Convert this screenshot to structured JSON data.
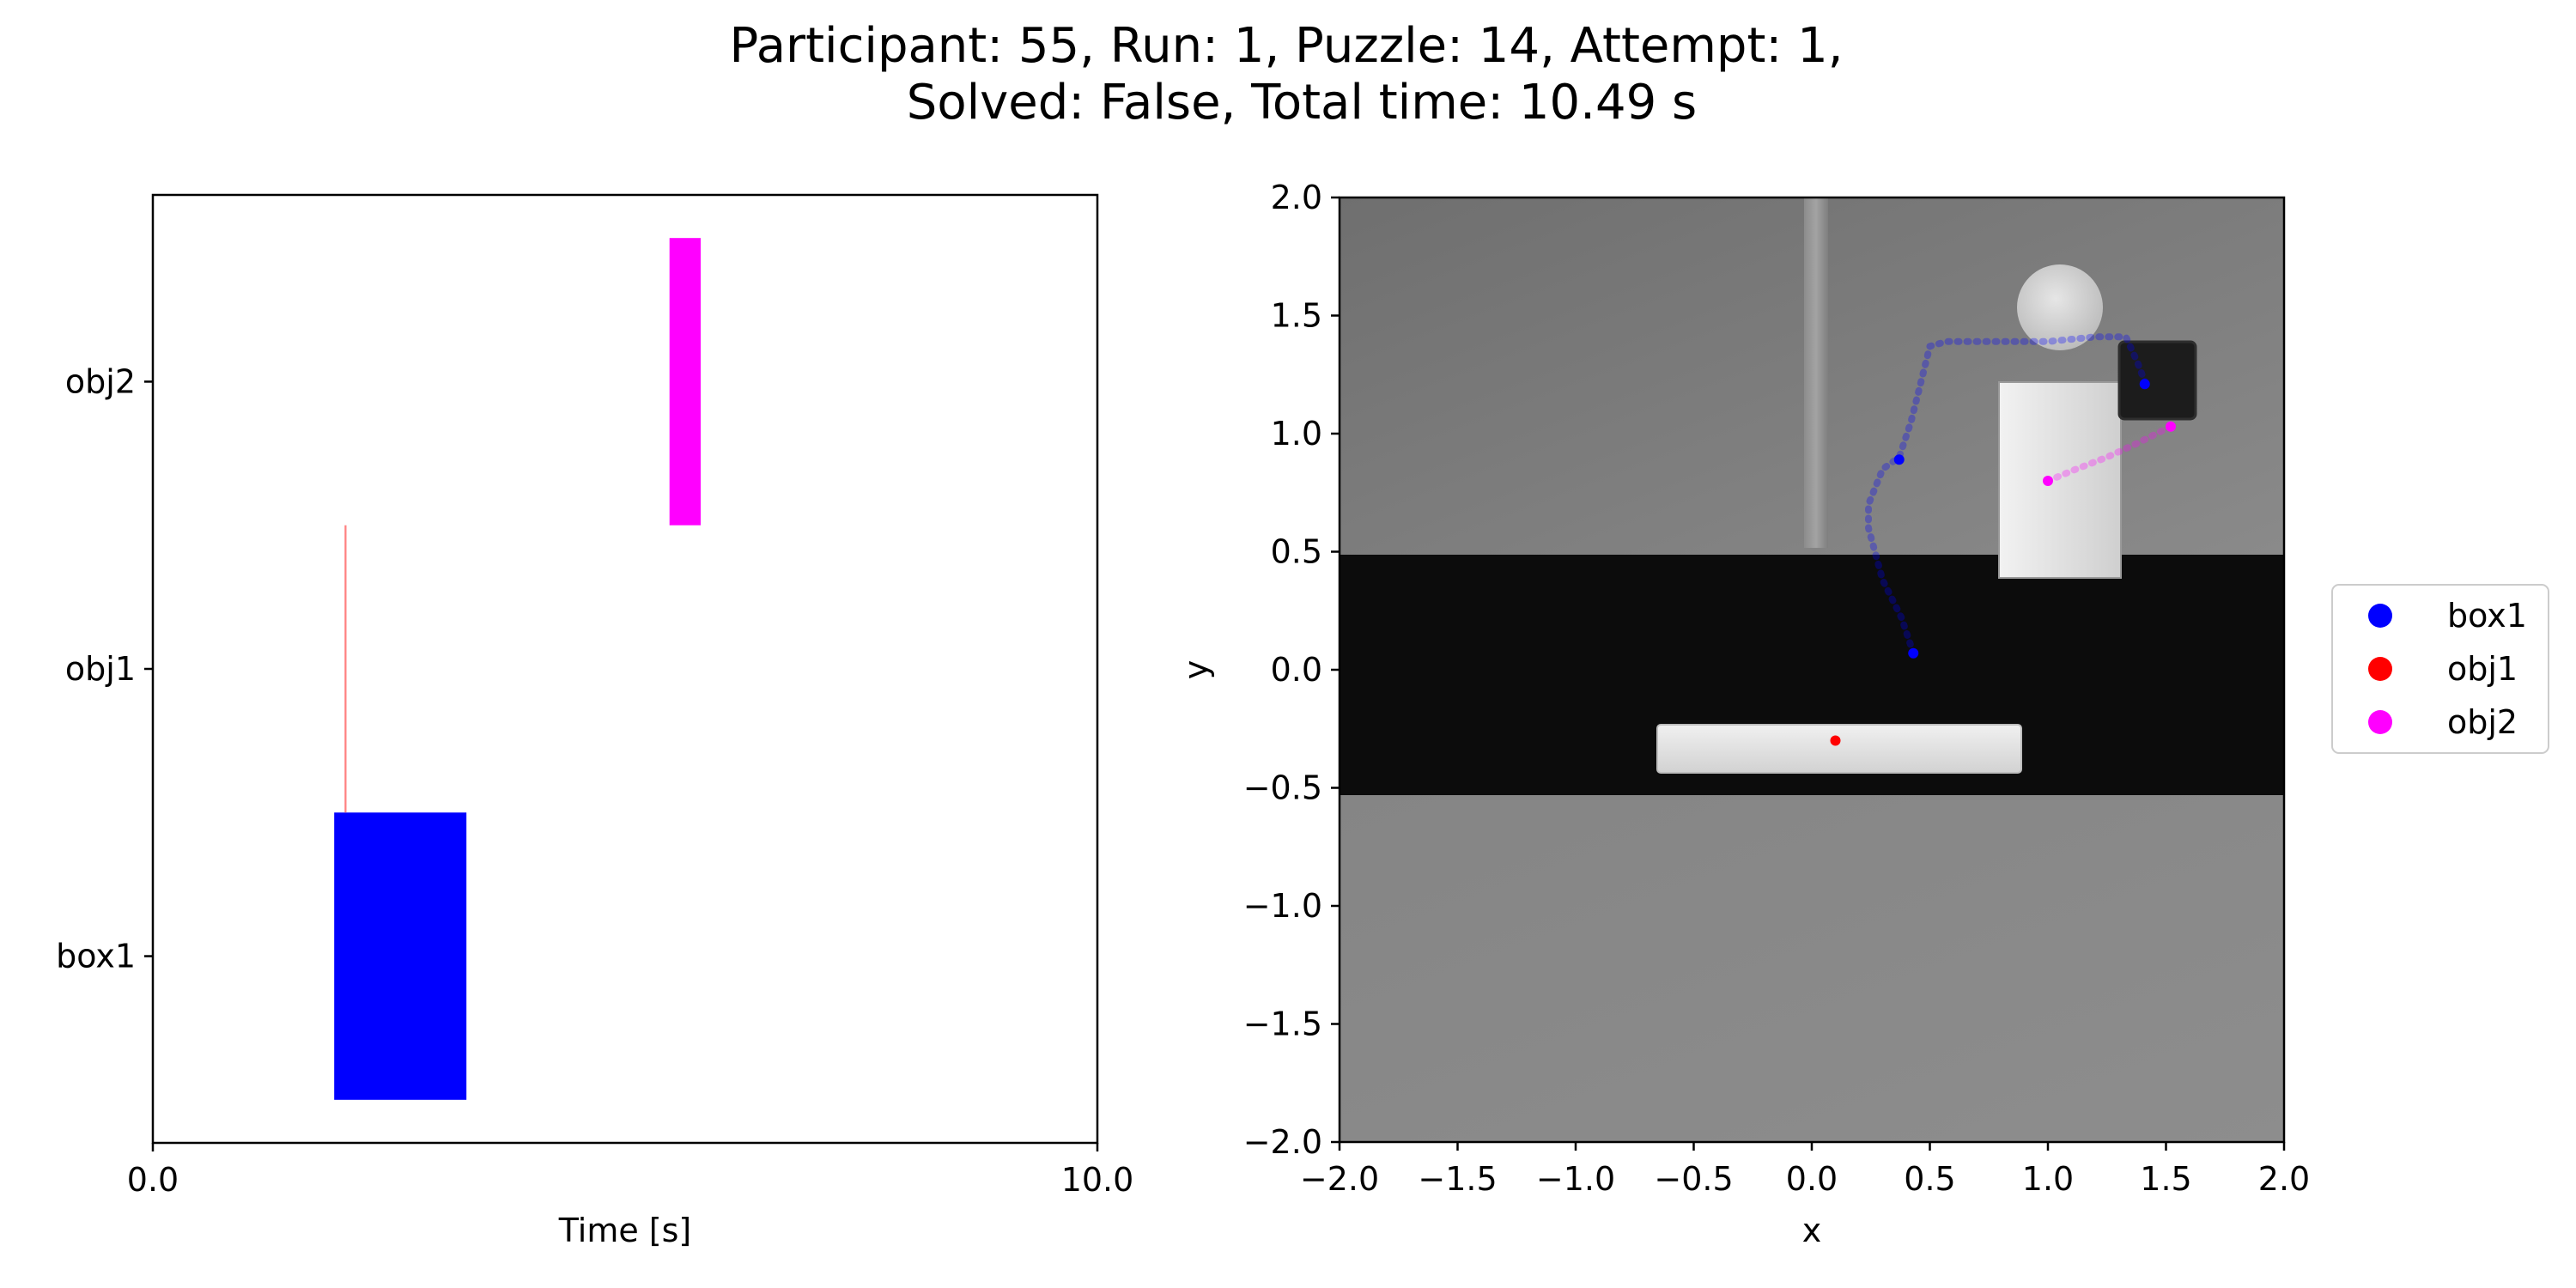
{
  "figure": {
    "title_line1": "Participant: 55, Run: 1, Puzzle: 14, Attempt: 1,",
    "title_line2": "Solved: False, Total time: 10.49 s"
  },
  "chart_data": [
    {
      "type": "bar",
      "orientation": "horizontal-timeline",
      "xlabel": "Time [s]",
      "ylabel": "",
      "xlim": [
        0,
        10
      ],
      "xticks": [
        "0.0",
        "10.0"
      ],
      "categories": [
        "box1",
        "obj1",
        "obj2"
      ],
      "intervals": [
        {
          "category": "box1",
          "start": 1.92,
          "end": 3.32,
          "color": "#0000ff"
        },
        {
          "category": "obj1",
          "start": 2.03,
          "end": 2.05,
          "color": "#ff8080"
        },
        {
          "category": "obj2",
          "start": 5.47,
          "end": 5.8,
          "color": "#ff00ff"
        }
      ],
      "grid": false
    },
    {
      "type": "scatter",
      "xlabel": "x",
      "ylabel": "y",
      "xlim": [
        -2.0,
        2.0
      ],
      "ylim": [
        -2.0,
        2.0
      ],
      "xticks": [
        "−2.0",
        "−1.5",
        "−1.0",
        "−0.5",
        "0.0",
        "0.5",
        "1.0",
        "1.5",
        "2.0"
      ],
      "yticks": [
        "−2.0",
        "−1.5",
        "−1.0",
        "−0.5",
        "0.0",
        "0.5",
        "1.0",
        "1.5",
        "2.0"
      ],
      "background": "top-down scene image",
      "grid": false,
      "legend_position": "outside-right",
      "series": [
        {
          "name": "box1",
          "color": "#0000ff",
          "trajectory": [
            [
              0.43,
              0.07
            ],
            [
              0.38,
              0.22
            ],
            [
              0.3,
              0.38
            ],
            [
              0.24,
              0.6
            ],
            [
              0.24,
              0.7
            ],
            [
              0.3,
              0.85
            ],
            [
              0.37,
              0.9
            ],
            [
              0.42,
              1.05
            ],
            [
              0.47,
              1.25
            ],
            [
              0.5,
              1.37
            ],
            [
              0.57,
              1.39
            ],
            [
              0.75,
              1.39
            ],
            [
              1.0,
              1.39
            ],
            [
              1.2,
              1.41
            ],
            [
              1.33,
              1.41
            ],
            [
              1.38,
              1.3
            ],
            [
              1.41,
              1.22
            ]
          ],
          "markers": [
            [
              0.43,
              0.07
            ],
            [
              0.37,
              0.89
            ],
            [
              1.41,
              1.21
            ]
          ]
        },
        {
          "name": "obj1",
          "color": "#ff0000",
          "trajectory": [],
          "markers": [
            [
              0.1,
              -0.3
            ]
          ]
        },
        {
          "name": "obj2",
          "color": "#ff00ff",
          "trajectory": [
            [
              1.0,
              0.8
            ],
            [
              1.12,
              0.85
            ],
            [
              1.25,
              0.9
            ],
            [
              1.38,
              0.96
            ],
            [
              1.52,
              1.03
            ]
          ],
          "markers": [
            [
              1.0,
              0.8
            ],
            [
              1.52,
              1.03
            ]
          ]
        }
      ]
    }
  ]
}
